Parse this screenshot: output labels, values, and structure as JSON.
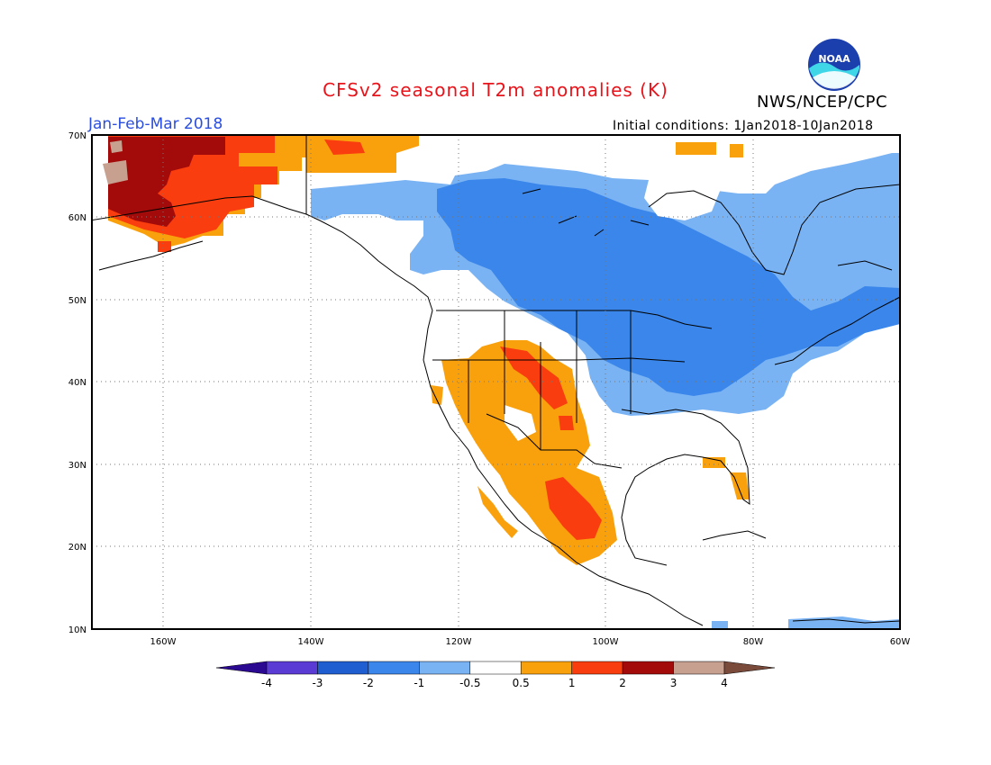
{
  "header": {
    "title": "CFSv2 seasonal T2m anomalies (K)",
    "agency": "NWS/NCEP/CPC",
    "period": "Jan-Feb-Mar 2018",
    "initial_conditions": "Initial conditions: 1Jan2018-10Jan2018",
    "logo_text": "NOAA"
  },
  "map": {
    "lon_range": [
      -170,
      -60
    ],
    "lat_range": [
      10,
      70
    ],
    "lat_labels": [
      "70N",
      "60N",
      "50N",
      "40N",
      "30N",
      "20N",
      "10N"
    ],
    "lon_labels": [
      "160W",
      "140W",
      "120W",
      "100W",
      "80W",
      "60W"
    ]
  },
  "colorbar": {
    "labels": [
      "-4",
      "-3",
      "-2",
      "-1",
      "-0.5",
      "0.5",
      "1",
      "2",
      "3",
      "4"
    ],
    "colors": [
      "#2b0a91",
      "#5a3bd3",
      "#1f5ed0",
      "#3a86ea",
      "#7ab3f4",
      "#ffffff",
      "#f9a10d",
      "#f93d0e",
      "#a30b0b",
      "#c7a08f",
      "#7a4a3a"
    ]
  }
}
